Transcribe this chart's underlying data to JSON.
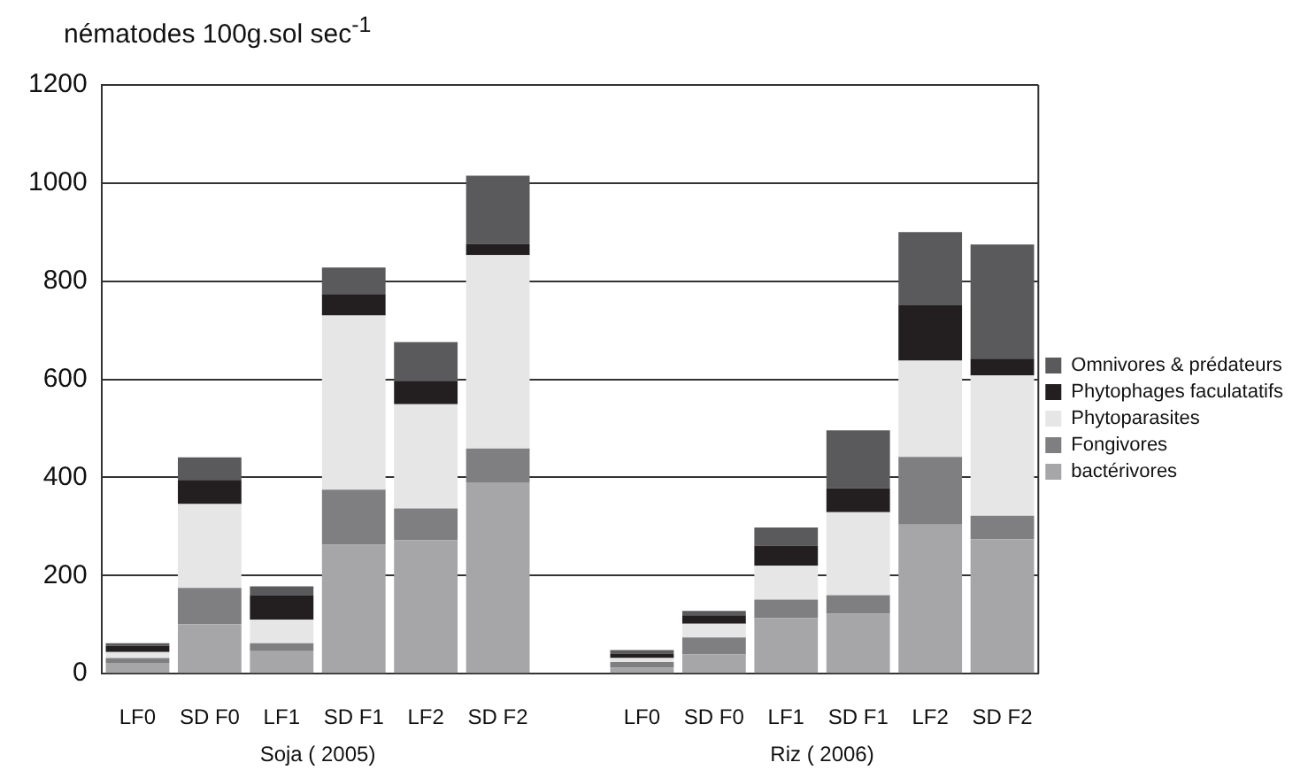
{
  "chart_data": {
    "type": "bar",
    "stacked": true,
    "ylabel": "nématodes 100g.sol sec$^{-1}$",
    "categories": [
      "LF0",
      "SD F0",
      "LF1",
      "SD F1",
      "LF2",
      "SD F2",
      null,
      "LF0",
      "SD F0",
      "LF1",
      "SD F1",
      "LF2",
      "SD F2"
    ],
    "series": [
      {
        "name": "bactérivores",
        "color": "#a6a6a8",
        "values": [
          22,
          101,
          46,
          263,
          272,
          390,
          null,
          12,
          39,
          113,
          122,
          304,
          274
        ]
      },
      {
        "name": "Fongivores",
        "color": "#7f7f82",
        "values": [
          10,
          74,
          16,
          112,
          65,
          69,
          null,
          12,
          35,
          38,
          38,
          138,
          48
        ]
      },
      {
        "name": "Phytoparasites",
        "color": "#e6e6e6",
        "values": [
          12,
          171,
          48,
          355,
          212,
          394,
          null,
          8,
          28,
          69,
          169,
          196,
          286
        ]
      },
      {
        "name": "Phytophages faculatatifs",
        "color": "#231f20",
        "values": [
          13,
          49,
          49,
          44,
          48,
          23,
          null,
          9,
          17,
          41,
          49,
          113,
          34
        ]
      },
      {
        "name": "Omnivores & prédateurs",
        "color": "#5a5a5c",
        "values": [
          5,
          46,
          19,
          54,
          79,
          139,
          null,
          7,
          9,
          37,
          118,
          149,
          233
        ]
      }
    ],
    "ylim": [
      0,
      1200
    ],
    "yticks": [
      0,
      200,
      400,
      600,
      800,
      1000,
      1200
    ],
    "grid": "y",
    "legend": "right",
    "annotations": [
      "Soja ( 2005)",
      "Riz ( 2006)"
    ]
  }
}
